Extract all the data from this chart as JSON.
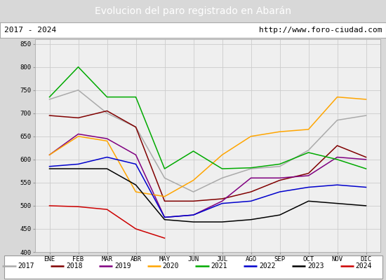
{
  "title": "Evolucion del paro registrado en Abarán",
  "subtitle_left": "2017 - 2024",
  "subtitle_right": "http://www.foro-ciudad.com",
  "months": [
    "ENE",
    "FEB",
    "MAR",
    "ABR",
    "MAY",
    "JUN",
    "JUL",
    "AGO",
    "SEP",
    "OCT",
    "NOV",
    "DIC"
  ],
  "series": {
    "2017": {
      "color": "#aaaaaa",
      "data": [
        730,
        750,
        700,
        670,
        560,
        530,
        560,
        580,
        585,
        620,
        685,
        695
      ]
    },
    "2018": {
      "color": "#800000",
      "data": [
        695,
        690,
        705,
        670,
        510,
        510,
        515,
        530,
        555,
        570,
        630,
        605
      ]
    },
    "2019": {
      "color": "#800080",
      "data": [
        610,
        655,
        645,
        610,
        475,
        480,
        510,
        560,
        560,
        565,
        605,
        600
      ]
    },
    "2020": {
      "color": "#FFA500",
      "data": [
        610,
        650,
        640,
        530,
        520,
        555,
        610,
        650,
        660,
        665,
        735,
        730
      ]
    },
    "2021": {
      "color": "#00aa00",
      "data": [
        735,
        800,
        735,
        735,
        580,
        618,
        580,
        582,
        590,
        615,
        600,
        580
      ]
    },
    "2022": {
      "color": "#0000cc",
      "data": [
        585,
        590,
        605,
        590,
        475,
        480,
        505,
        510,
        530,
        540,
        545,
        540
      ]
    },
    "2023": {
      "color": "#000000",
      "data": [
        580,
        580,
        580,
        545,
        470,
        465,
        465,
        470,
        480,
        510,
        505,
        500
      ]
    },
    "2024": {
      "color": "#cc0000",
      "data": [
        500,
        498,
        492,
        450,
        430,
        null,
        null,
        null,
        null,
        null,
        null,
        null
      ]
    }
  },
  "ylim": [
    400,
    860
  ],
  "yticks": [
    400,
    450,
    500,
    550,
    600,
    650,
    700,
    750,
    800,
    850
  ],
  "bg_color": "#d8d8d8",
  "plot_bg_color": "#efefef",
  "title_bg_color": "#4472c4",
  "title_text_color": "#ffffff",
  "header_bg_color": "#ffffff",
  "grid_color": "#cccccc",
  "legend_bg_color": "#ffffff"
}
